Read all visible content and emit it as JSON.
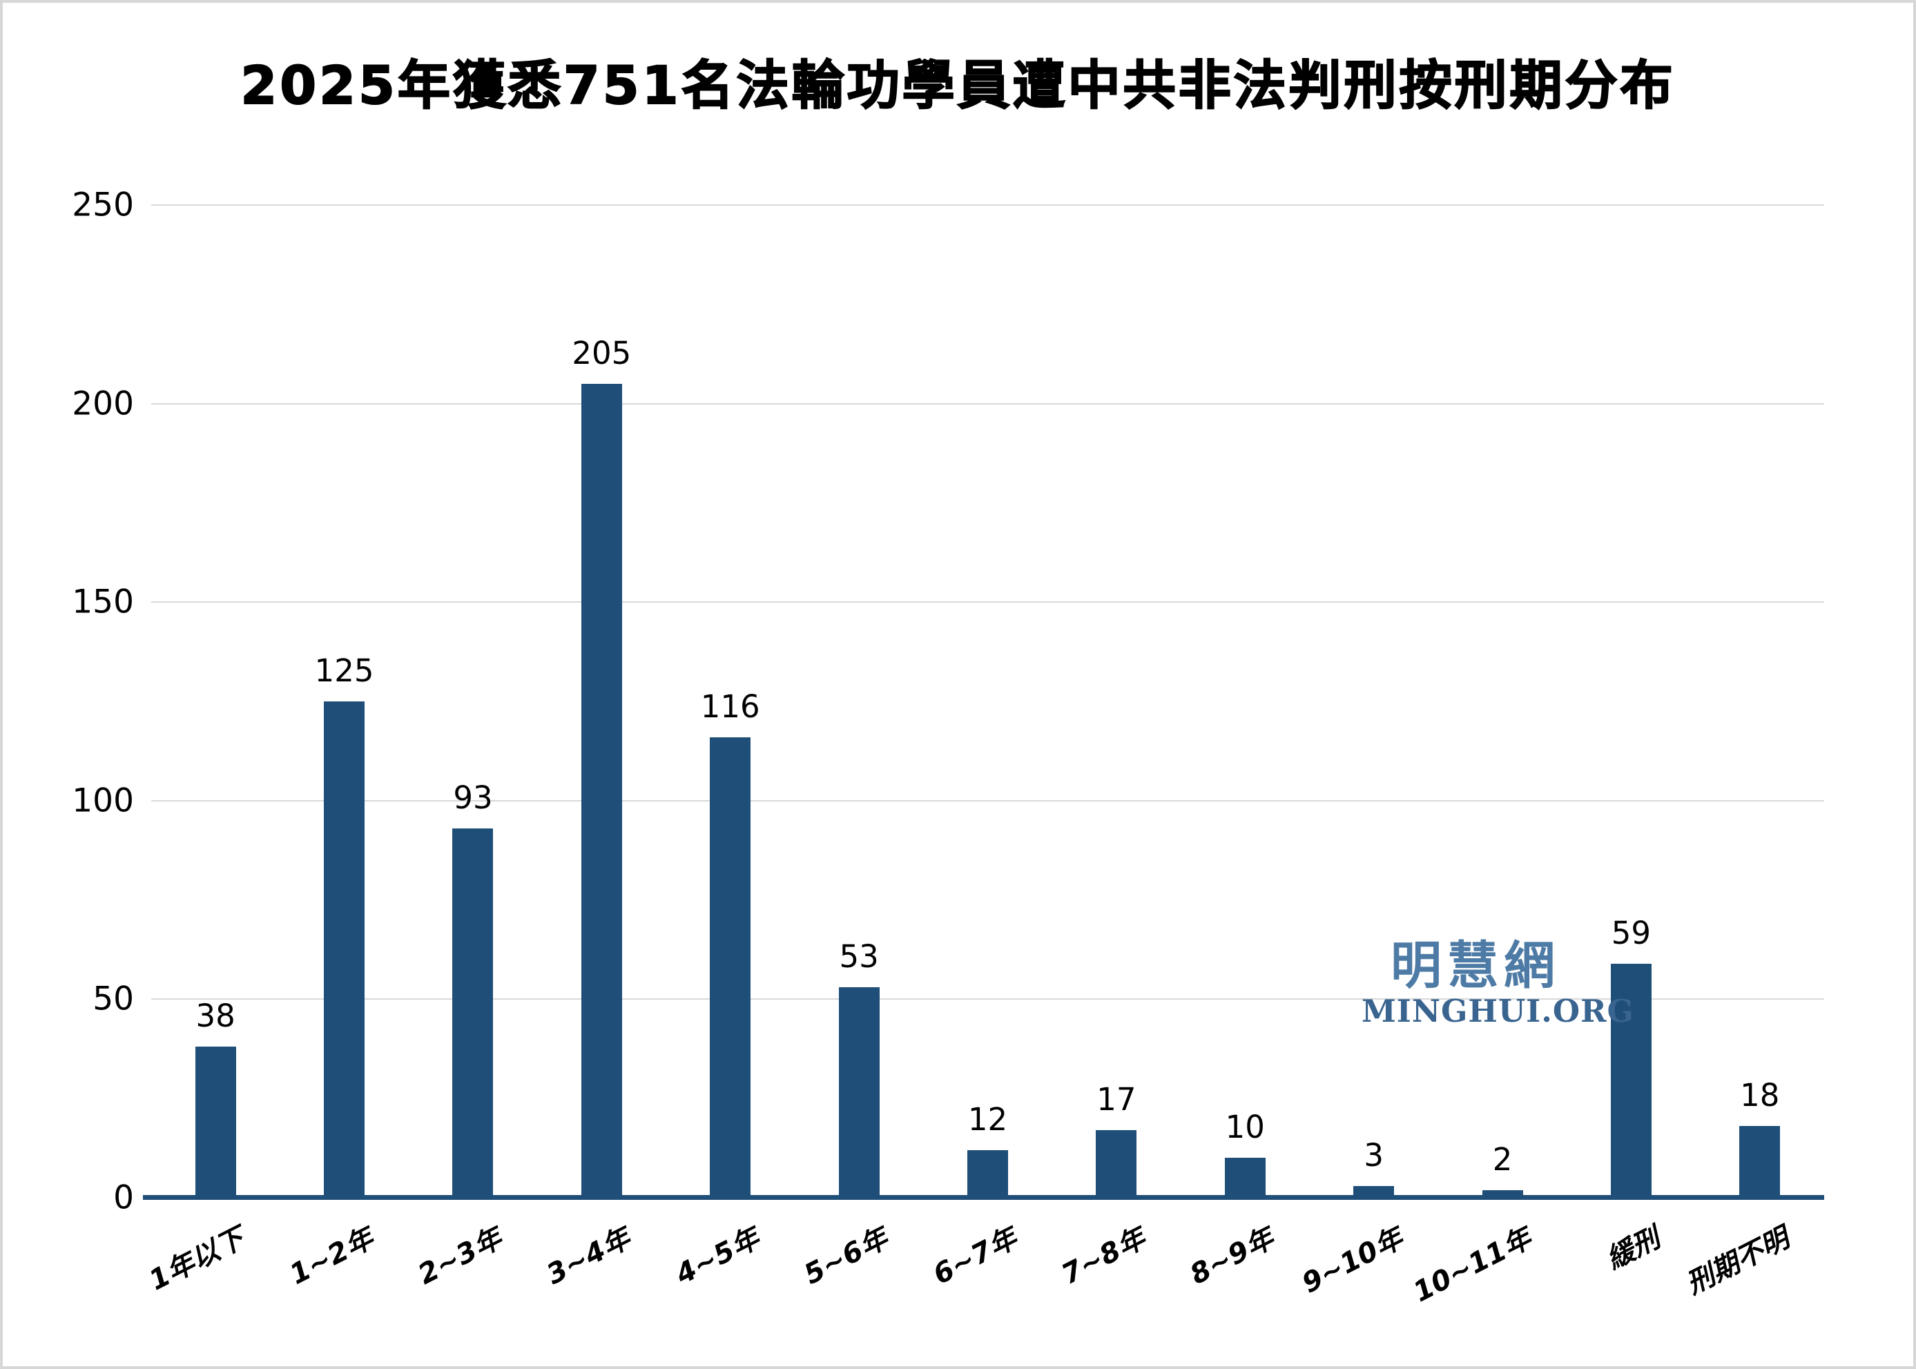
{
  "chart_data": {
    "type": "bar",
    "title": "2025年獲悉751名法輪功學員遭中共非法判刑按刑期分布",
    "categories": [
      "1年以下",
      "1~2年",
      "2~3年",
      "3~4年",
      "4~5年",
      "5~6年",
      "6~7年",
      "7~8年",
      "8~9年",
      "9~10年",
      "10~11年",
      "緩刑",
      "刑期不明"
    ],
    "values": [
      38,
      125,
      93,
      205,
      116,
      53,
      12,
      17,
      10,
      3,
      2,
      59,
      18
    ],
    "total_in_title": 751,
    "xlabel": "",
    "ylabel": "",
    "ylim": [
      0,
      250
    ],
    "yticks": [
      0,
      50,
      100,
      150,
      200,
      250
    ],
    "grid": "horizontal-on",
    "legend": "none",
    "bar_color": "#1f4e78",
    "axis_line_color": "#1f4e78",
    "gridline_color": "#d9d9d9"
  },
  "watermark": {
    "cjk_text": "明慧網",
    "latin_text": "MINGHUI.ORG",
    "cjk_color": "#4e7ba6",
    "latin_color": "#39648f"
  }
}
